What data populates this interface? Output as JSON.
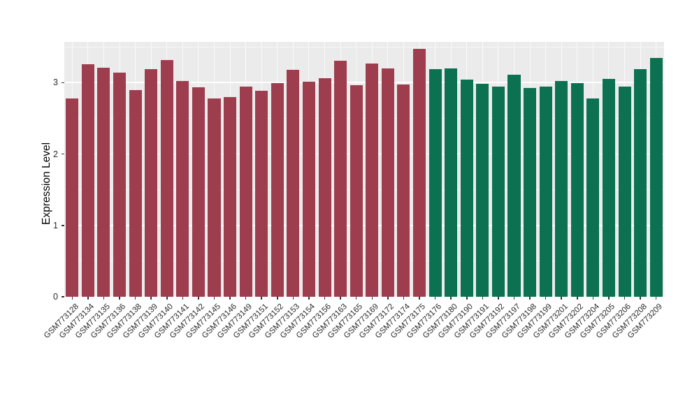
{
  "figure": {
    "background": "#ffffff",
    "panel_background": "#ebebeb",
    "grid_color": "#ffffff",
    "tick_color": "#333333",
    "text_color": "#2b2b2b"
  },
  "chart_data": {
    "type": "bar",
    "title": "",
    "xlabel": "",
    "ylabel": "Expression Level",
    "ylim": [
      0,
      3.57
    ],
    "yticks": [
      0,
      1,
      2,
      3
    ],
    "yticks_minor": [
      0.5,
      1.5,
      2.5,
      3.5
    ],
    "grid": "on",
    "legend_position": "none",
    "group_split_index": 23,
    "group_colors": [
      "#9e3d4e",
      "#0b7150"
    ],
    "groups": [
      "group1-red",
      "group2-green"
    ],
    "categories": [
      "GSM773128",
      "GSM773134",
      "GSM773135",
      "GSM773136",
      "GSM773138",
      "GSM773139",
      "GSM773140",
      "GSM773141",
      "GSM773142",
      "GSM773145",
      "GSM773146",
      "GSM773149",
      "GSM773151",
      "GSM773152",
      "GSM773153",
      "GSM773154",
      "GSM773156",
      "GSM773163",
      "GSM773165",
      "GSM773169",
      "GSM773172",
      "GSM773174",
      "GSM773175",
      "GSM773176",
      "GSM773180",
      "GSM773190",
      "GSM773191",
      "GSM773192",
      "GSM773197",
      "GSM773198",
      "GSM773199",
      "GSM773201",
      "GSM773202",
      "GSM773204",
      "GSM773205",
      "GSM773206",
      "GSM773208",
      "GSM773209"
    ],
    "values": [
      2.78,
      3.26,
      3.21,
      3.14,
      2.9,
      3.19,
      3.32,
      3.02,
      2.93,
      2.78,
      2.8,
      2.94,
      2.89,
      2.99,
      3.18,
      3.01,
      3.06,
      3.31,
      2.96,
      3.27,
      3.2,
      2.97,
      3.47,
      3.19,
      3.2,
      3.04,
      2.98,
      2.94,
      3.11,
      2.92,
      2.94,
      3.02,
      2.99,
      2.78,
      3.05,
      2.94,
      3.19,
      3.35
    ]
  }
}
